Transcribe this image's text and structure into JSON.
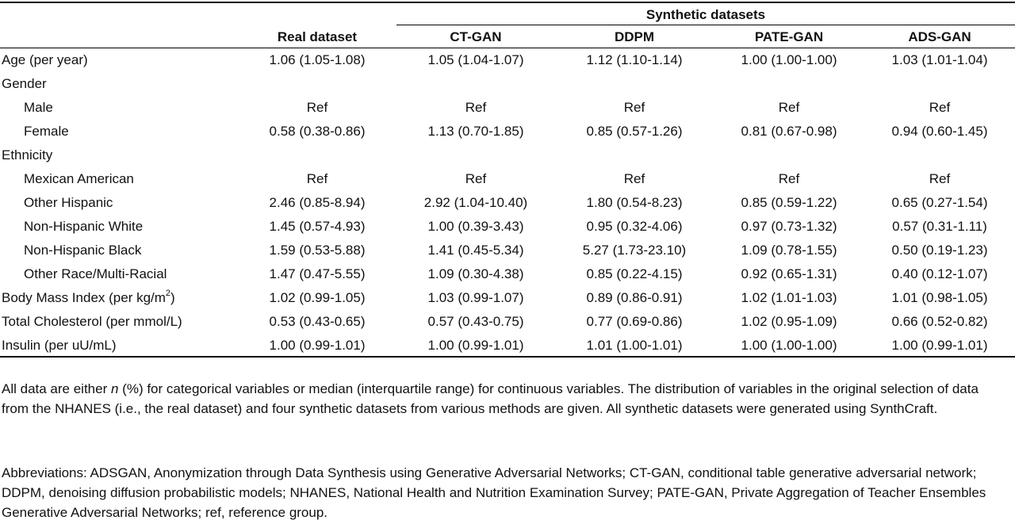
{
  "table": {
    "group_header": "Synthetic datasets",
    "columns": [
      "Real dataset",
      "CT-GAN",
      "DDPM",
      "PATE-GAN",
      "ADS-GAN"
    ],
    "rows": [
      {
        "label": "Age (per year)",
        "indent": false,
        "values": [
          "1.06 (1.05-1.08)",
          "1.05 (1.04-1.07)",
          "1.12 (1.10-1.14)",
          "1.00 (1.00-1.00)",
          "1.03 (1.01-1.04)"
        ]
      },
      {
        "label": "Gender",
        "indent": false,
        "values": [
          "",
          "",
          "",
          "",
          ""
        ]
      },
      {
        "label": "Male",
        "indent": true,
        "values": [
          "Ref",
          "Ref",
          "Ref",
          "Ref",
          "Ref"
        ]
      },
      {
        "label": "Female",
        "indent": true,
        "values": [
          "0.58 (0.38-0.86)",
          "1.13 (0.70-1.85)",
          "0.85 (0.57-1.26)",
          "0.81 (0.67-0.98)",
          "0.94 (0.60-1.45)"
        ]
      },
      {
        "label": "Ethnicity",
        "indent": false,
        "values": [
          "",
          "",
          "",
          "",
          ""
        ]
      },
      {
        "label": "Mexican American",
        "indent": true,
        "values": [
          "Ref",
          "Ref",
          "Ref",
          "Ref",
          "Ref"
        ]
      },
      {
        "label": "Other Hispanic",
        "indent": true,
        "values": [
          "2.46 (0.85-8.94)",
          "2.92 (1.04-10.40)",
          "1.80 (0.54-8.23)",
          "0.85 (0.59-1.22)",
          "0.65 (0.27-1.54)"
        ]
      },
      {
        "label": "Non-Hispanic White",
        "indent": true,
        "values": [
          "1.45 (0.57-4.93)",
          "1.00 (0.39-3.43)",
          "0.95 (0.32-4.06)",
          "0.97 (0.73-1.32)",
          "0.57 (0.31-1.11)"
        ]
      },
      {
        "label": "Non-Hispanic Black",
        "indent": true,
        "values": [
          "1.59 (0.53-5.88)",
          "1.41 (0.45-5.34)",
          "5.27 (1.73-23.10)",
          "1.09 (0.78-1.55)",
          "0.50 (0.19-1.23)"
        ]
      },
      {
        "label": "Other Race/Multi-Racial",
        "indent": true,
        "values": [
          "1.47 (0.47-5.55)",
          "1.09 (0.30-4.38)",
          "0.85 (0.22-4.15)",
          "0.92 (0.65-1.31)",
          "0.40 (0.12-1.07)"
        ]
      },
      {
        "label": "Body Mass Index (per kg/m",
        "sup": "2",
        "label_suffix": ")",
        "indent": false,
        "values": [
          "1.02 (0.99-1.05)",
          "1.03 (0.99-1.07)",
          "0.89 (0.86-0.91)",
          "1.02 (1.01-1.03)",
          "1.01 (0.98-1.05)"
        ]
      },
      {
        "label": "Total Cholesterol (per mmol/L)",
        "indent": false,
        "values": [
          "0.53 (0.43-0.65)",
          "0.57 (0.43-0.75)",
          "0.77 (0.69-0.86)",
          "1.02 (0.95-1.09)",
          "0.66 (0.52-0.82)"
        ]
      },
      {
        "label": "Insulin (per uU/mL)",
        "indent": false,
        "values": [
          "1.00 (0.99-1.01)",
          "1.00 (0.99-1.01)",
          "1.01 (1.00-1.01)",
          "1.00 (1.00-1.00)",
          "1.00 (0.99-1.01)"
        ]
      }
    ]
  },
  "notes": {
    "note1_pre": "All data are either ",
    "note1_italic": "n",
    "note1_post": " (%) for categorical variables or median (interquartile range) for continuous variables. The distribution of variables in the original selection of data from the NHANES (i.e., the real dataset) and four synthetic datasets from various methods are given. All synthetic datasets were generated using SynthCraft.",
    "note2": "Abbreviations: ADSGAN, Anonymization through Data Synthesis using Generative Adversarial Networks; CT-GAN, conditional table generative adversarial network; DDPM, denoising diffusion probabilistic models; NHANES, National Health and Nutrition Examination Survey; PATE-GAN, Private Aggregation of Teacher Ensembles Generative Adversarial Networks; ref, reference group."
  }
}
